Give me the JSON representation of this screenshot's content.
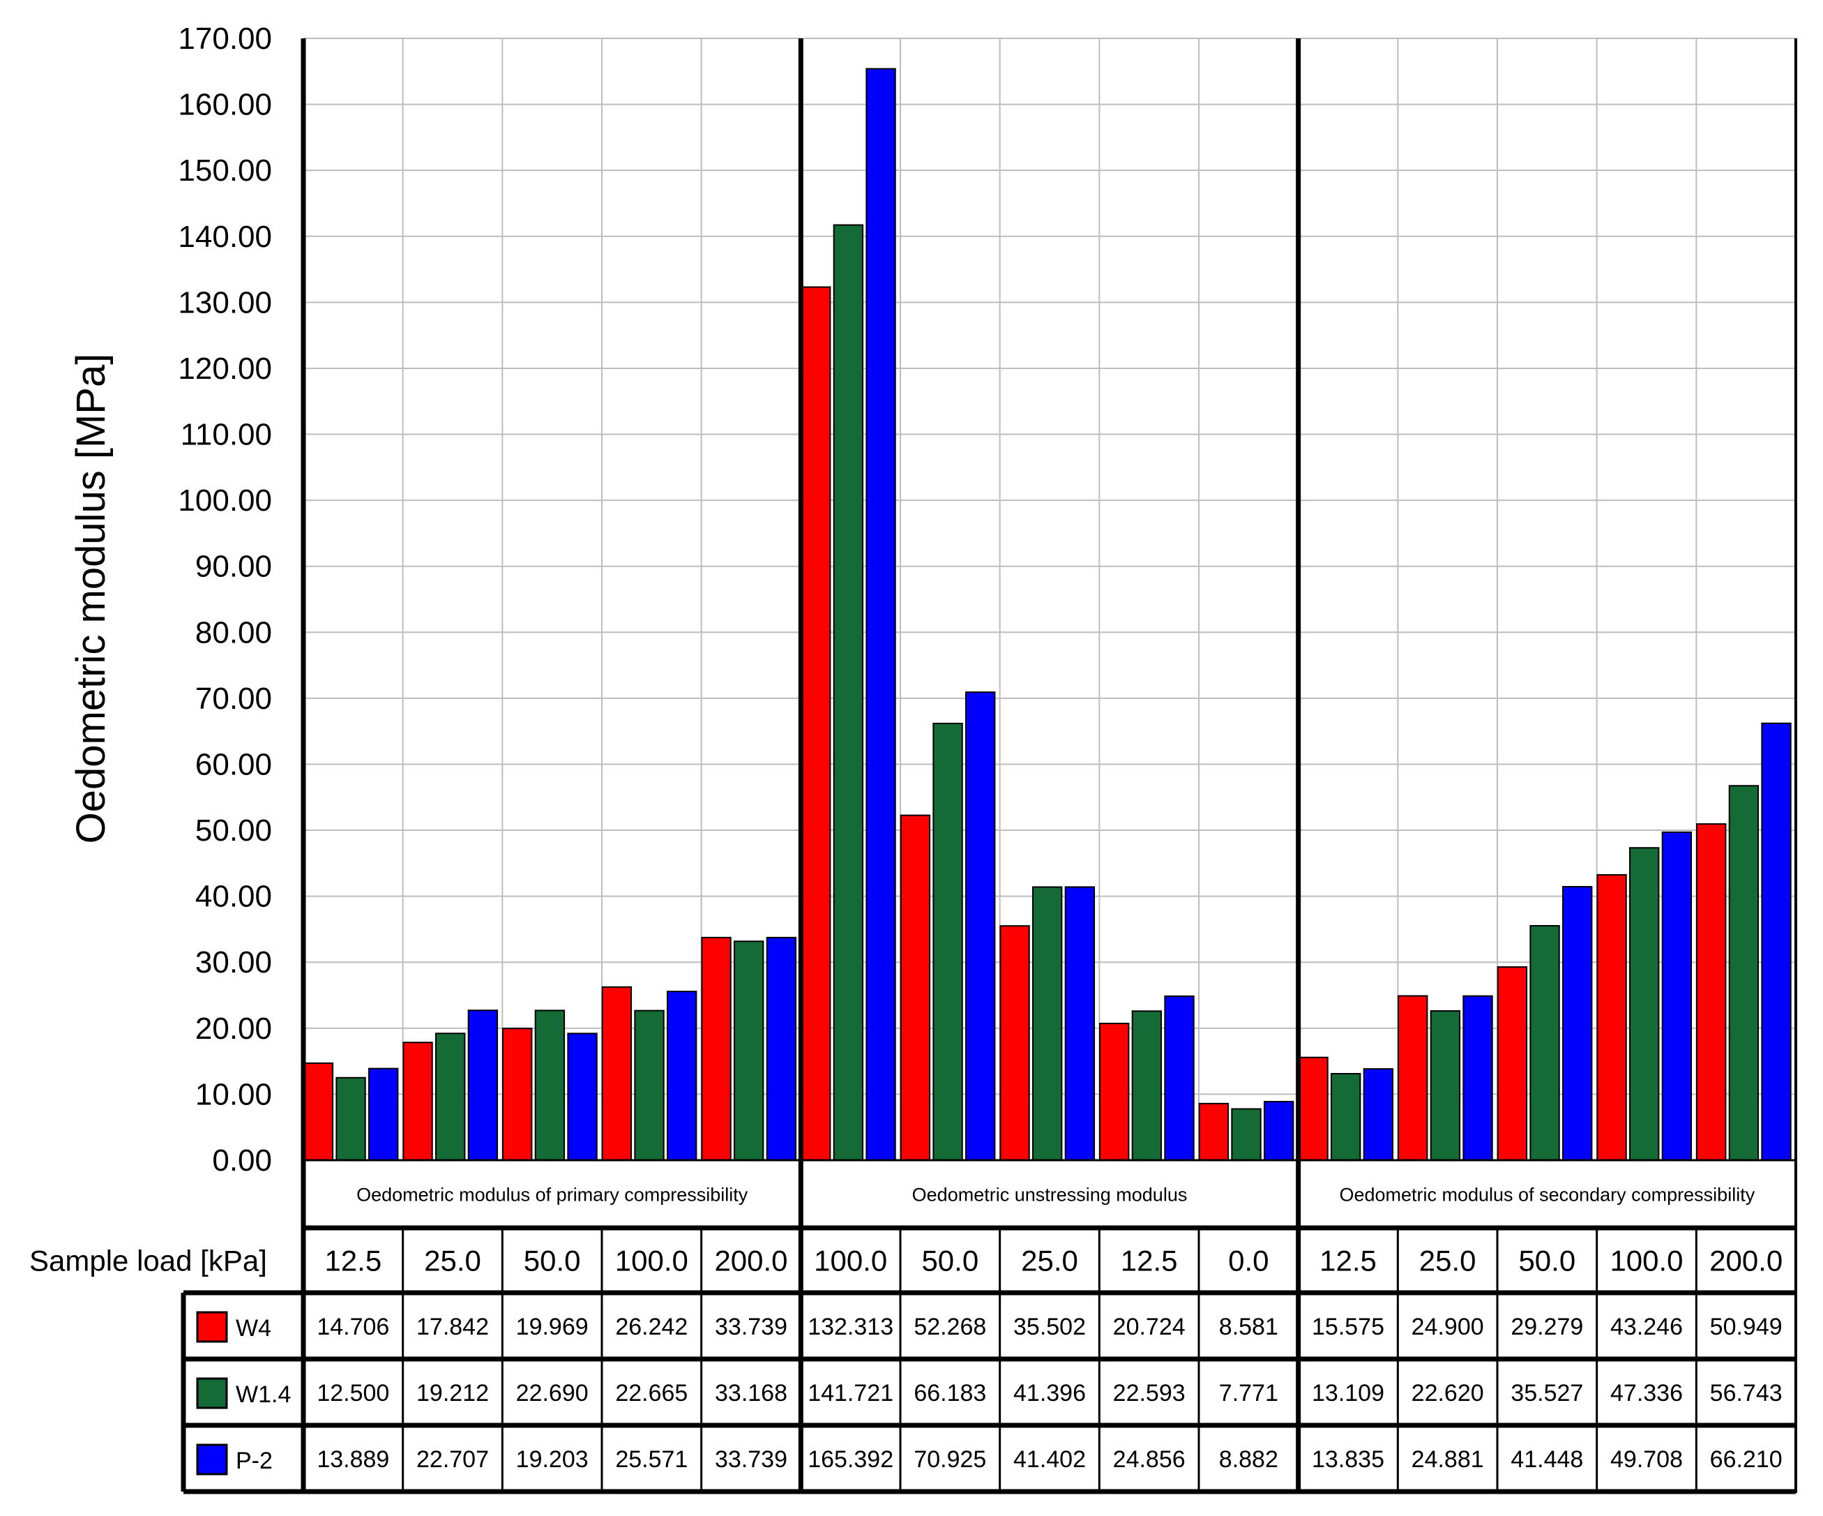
{
  "chart_data": {
    "type": "bar",
    "ylabel": "Oedometric modulus [MPa]",
    "ylim": [
      0,
      170
    ],
    "ytick_step": 10,
    "grid": true,
    "row_header": "Sample load [kPa]",
    "groups": [
      {
        "label": "Oedometric modulus of primary compressibility",
        "categories": [
          "12.5",
          "25.0",
          "50.0",
          "100.0",
          "200.0"
        ]
      },
      {
        "label": "Oedometric unstressing modulus",
        "categories": [
          "100.0",
          "50.0",
          "25.0",
          "12.5",
          "0.0"
        ]
      },
      {
        "label": "Oedometric modulus of secondary compressibility",
        "categories": [
          "12.5",
          "25.0",
          "50.0",
          "100.0",
          "200.0"
        ]
      }
    ],
    "series": [
      {
        "name": "W4",
        "color": "#ff0000",
        "values": [
          14.706,
          17.842,
          19.969,
          26.242,
          33.739,
          132.313,
          52.268,
          35.502,
          20.724,
          8.581,
          15.575,
          24.9,
          29.279,
          43.246,
          50.949
        ],
        "labels": [
          "14.706",
          "17.842",
          "19.969",
          "26.242",
          "33.739",
          "132.313",
          "52.268",
          "35.502",
          "20.724",
          "8.581",
          "15.575",
          "24.900",
          "29.279",
          "43.246",
          "50.949"
        ]
      },
      {
        "name": "W1.4",
        "color": "#146b36",
        "values": [
          12.5,
          19.212,
          22.69,
          22.665,
          33.168,
          141.721,
          66.183,
          41.396,
          22.593,
          7.771,
          13.109,
          22.62,
          35.527,
          47.336,
          56.743
        ],
        "labels": [
          "12.500",
          "19.212",
          "22.690",
          "22.665",
          "33.168",
          "141.721",
          "66.183",
          "41.396",
          "22.593",
          "7.771",
          "13.109",
          "22.620",
          "35.527",
          "47.336",
          "56.743"
        ]
      },
      {
        "name": "P-2",
        "color": "#0000ff",
        "values": [
          13.889,
          22.707,
          19.203,
          25.571,
          33.739,
          165.392,
          70.925,
          41.402,
          24.856,
          8.882,
          13.835,
          24.881,
          41.448,
          49.708,
          66.21
        ],
        "labels": [
          "13.889",
          "22.707",
          "19.203",
          "25.571",
          "33.739",
          "165.392",
          "70.925",
          "41.402",
          "24.856",
          "8.882",
          "13.835",
          "24.881",
          "41.448",
          "49.708",
          "66.210"
        ]
      }
    ]
  }
}
